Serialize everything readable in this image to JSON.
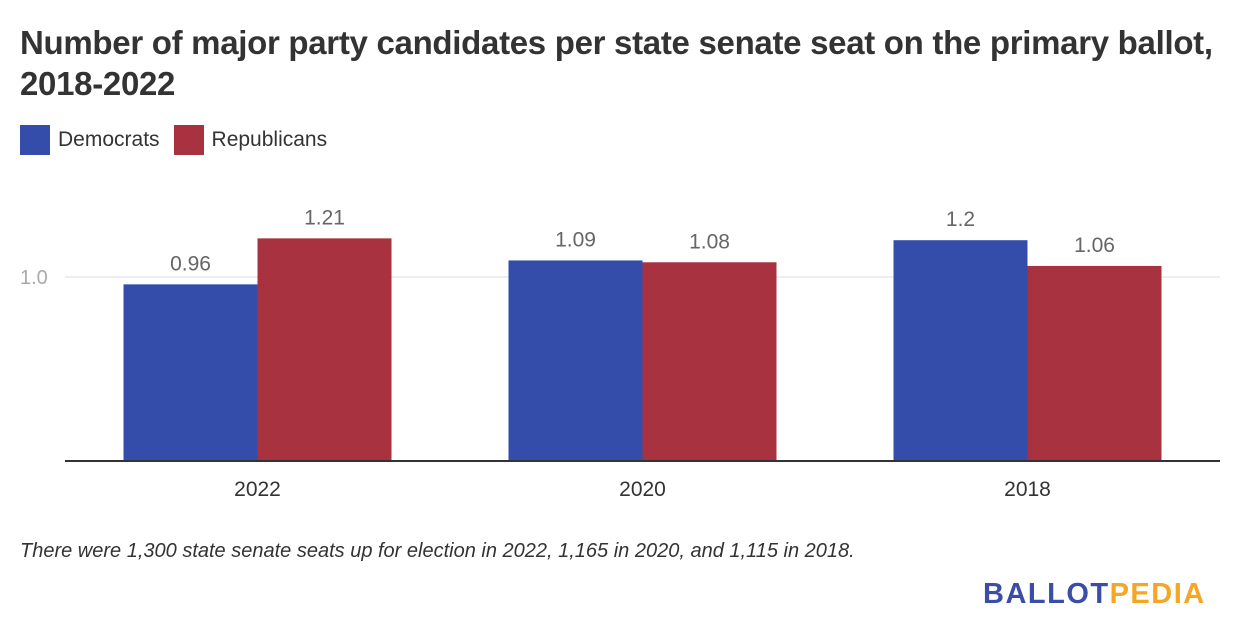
{
  "title": "Number of major party candidates per state senate seat on the primary ballot, 2018-2022",
  "note": "There were 1,300 state senate seats up for election in 2022, 1,165 in 2020, and 1,115 in 2018.",
  "logo": {
    "part1": "BALLOT",
    "part2": "PEDIA",
    "color1": "#3a4ea8",
    "color2": "#f5a623"
  },
  "chart_data": {
    "type": "bar",
    "categories": [
      "2022",
      "2020",
      "2018"
    ],
    "series": [
      {
        "name": "Democrats",
        "color": "#344dab",
        "values": [
          0.96,
          1.09,
          1.2
        ],
        "labels": [
          "0.96",
          "1.09",
          "1.2"
        ]
      },
      {
        "name": "Republicans",
        "color": "#a83240",
        "values": [
          1.21,
          1.08,
          1.06
        ],
        "labels": [
          "1.21",
          "1.08",
          "1.06"
        ]
      }
    ],
    "yticks": [
      {
        "value": 1.0,
        "label": "1.0"
      }
    ],
    "ylim": [
      0,
      1.3
    ],
    "grid": true,
    "legend": "top-left"
  }
}
